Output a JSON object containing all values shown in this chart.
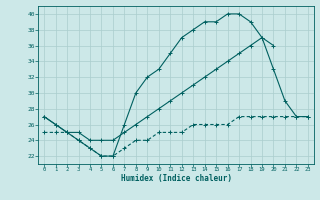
{
  "x": [
    0,
    1,
    2,
    3,
    4,
    5,
    6,
    7,
    8,
    9,
    10,
    11,
    12,
    13,
    14,
    15,
    16,
    17,
    18,
    19,
    20,
    21,
    22,
    23
  ],
  "curve_max": [
    27,
    26,
    25,
    24,
    23,
    22,
    22,
    26,
    30,
    32,
    33,
    35,
    37,
    38,
    39,
    39,
    40,
    40,
    39,
    37,
    33,
    29,
    27,
    27
  ],
  "curve_mean": [
    27,
    26,
    25,
    25,
    24,
    24,
    24,
    25,
    26,
    27,
    28,
    29,
    30,
    31,
    32,
    33,
    34,
    35,
    36,
    37,
    36,
    null,
    null,
    null
  ],
  "curve_min": [
    25,
    25,
    25,
    24,
    23,
    22,
    22,
    23,
    24,
    24,
    25,
    25,
    25,
    26,
    26,
    26,
    26,
    27,
    27,
    27,
    27,
    27,
    27,
    27
  ],
  "color": "#006060",
  "bg_color": "#cce8e8",
  "grid_color": "#aacece",
  "xlabel": "Humidex (Indice chaleur)",
  "ylim": [
    21,
    41
  ],
  "xlim": [
    -0.5,
    23.5
  ],
  "yticks": [
    22,
    24,
    26,
    28,
    30,
    32,
    34,
    36,
    38,
    40
  ],
  "xticks": [
    0,
    1,
    2,
    3,
    4,
    5,
    6,
    7,
    8,
    9,
    10,
    11,
    12,
    13,
    14,
    15,
    16,
    17,
    18,
    19,
    20,
    21,
    22,
    23
  ]
}
